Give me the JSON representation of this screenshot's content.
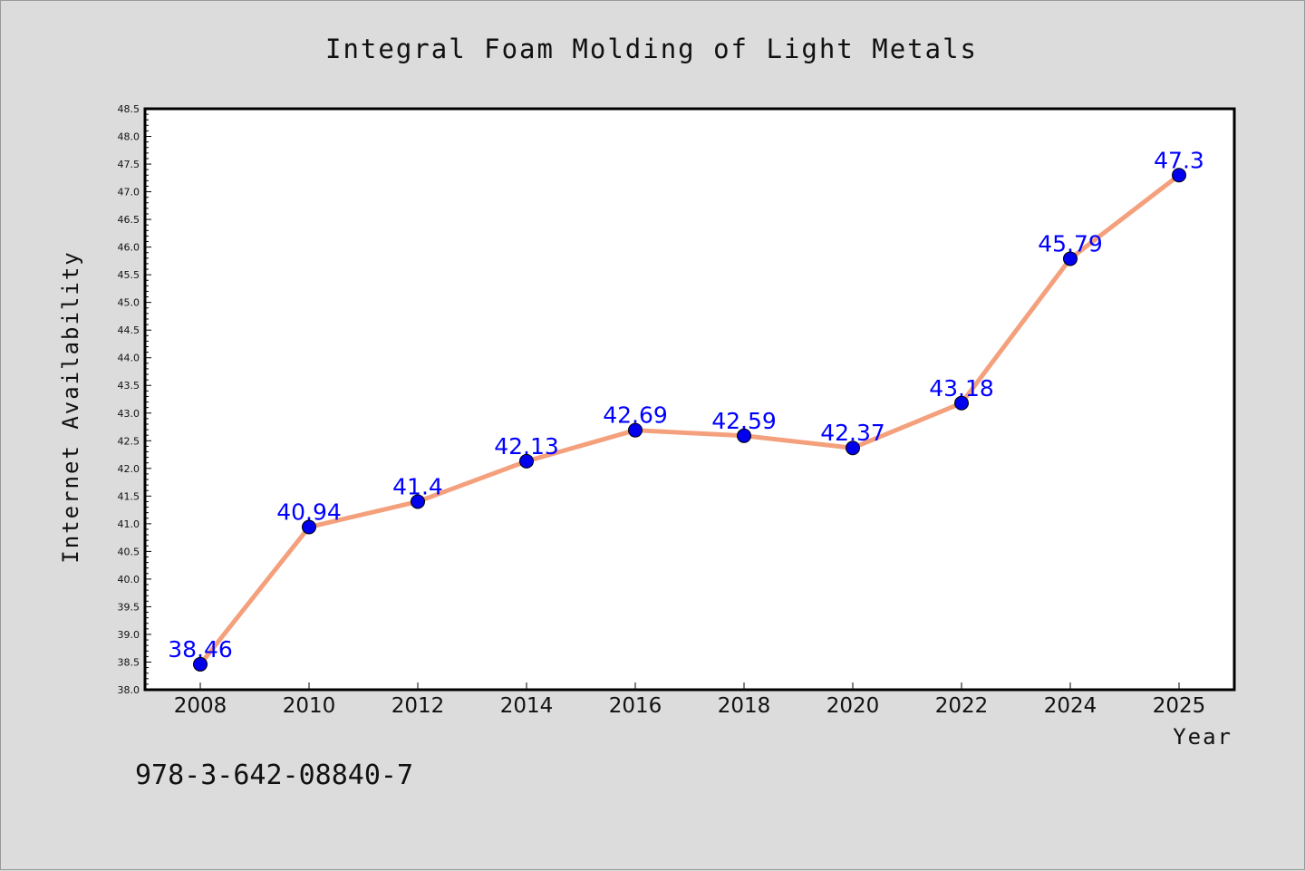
{
  "chart_data": {
    "type": "line",
    "title": "Integral Foam Molding of Light Metals",
    "xlabel": "Year",
    "ylabel": "Internet Availability",
    "categories": [
      "2008",
      "2010",
      "2012",
      "2014",
      "2016",
      "2018",
      "2020",
      "2022",
      "2024",
      "2025"
    ],
    "series": [
      {
        "values": [
          38.46,
          40.94,
          41.4,
          42.13,
          42.69,
          42.59,
          42.37,
          43.18,
          45.79,
          47.3
        ],
        "data_labels": [
          "38.46",
          "40.94",
          "41.4",
          "42.13",
          "42.69",
          "42.59",
          "42.37",
          "43.18",
          "45.79",
          "47.3"
        ]
      }
    ],
    "ylim": [
      38.0,
      48.5
    ],
    "yticks": [
      "38.0",
      "38.5",
      "39.0",
      "39.5",
      "40.0",
      "40.5",
      "41.0",
      "41.5",
      "42.0",
      "42.5",
      "43.0",
      "43.5",
      "44.0",
      "44.5",
      "45.0",
      "45.5",
      "46.0",
      "46.5",
      "47.0",
      "47.5",
      "48.0",
      "48.5"
    ],
    "grid": false,
    "legend": "none"
  },
  "footer": {
    "isbn": "978-3-642-08840-7"
  },
  "colors": {
    "background": "#dcdcdc",
    "plot_background": "#ffffff",
    "line": "#f4a07c",
    "marker": "#0000ee",
    "label": "#0000ff"
  }
}
